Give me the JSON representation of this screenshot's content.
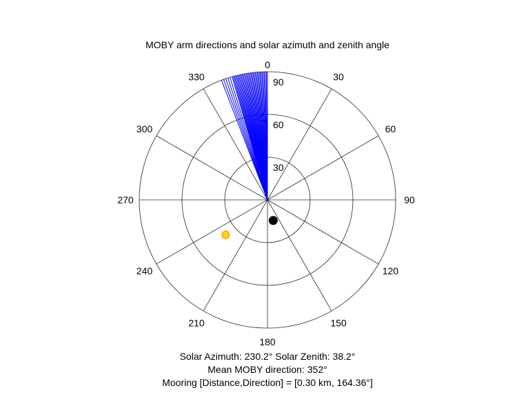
{
  "chart_data": {
    "type": "polar",
    "title": "MOBY arm directions and solar azimuth and zenith angle",
    "theta_zero": "top",
    "theta_direction": "clockwise",
    "theta_ticks": [
      "0",
      "30",
      "60",
      "90",
      "120",
      "150",
      "180",
      "210",
      "240",
      "270",
      "300",
      "330"
    ],
    "theta_tick_values": [
      0,
      30,
      60,
      90,
      120,
      150,
      180,
      210,
      240,
      270,
      300,
      330
    ],
    "r_ticks": [
      "30",
      "60",
      "90"
    ],
    "r_tick_values": [
      30,
      60,
      90
    ],
    "rlim": [
      0,
      90
    ],
    "grid": true,
    "series": [
      {
        "kind": "radial-lines",
        "color": "#0000ff",
        "directions_deg": [
          339,
          340,
          341,
          342,
          343,
          344,
          344.5,
          345,
          345.5,
          346,
          346.5,
          347,
          347.5,
          348,
          348.5,
          349,
          349.5,
          350,
          350.5,
          351,
          351.5,
          352,
          352.5,
          353,
          353.5,
          354,
          354.5,
          355,
          355.5,
          356,
          356.5,
          357,
          357.5,
          358,
          358.5,
          359,
          359.5,
          0
        ],
        "r": 90
      },
      {
        "kind": "marker",
        "label": "Solar position",
        "theta_deg": 230.2,
        "r": 38.2,
        "color": "#ffd700",
        "edge_color": "#ff8c00"
      },
      {
        "kind": "marker",
        "label": "Mooring",
        "theta_deg": 164.36,
        "r": 15,
        "color": "#000000"
      }
    ]
  },
  "captions": {
    "line1": "Solar Azimuth: 230.2°    Solar Zenith: 38.2°",
    "line2": "Mean MOBY direction: 352°",
    "line3": "Mooring [Distance,Direction] = [0.30 km, 164.36°]"
  }
}
